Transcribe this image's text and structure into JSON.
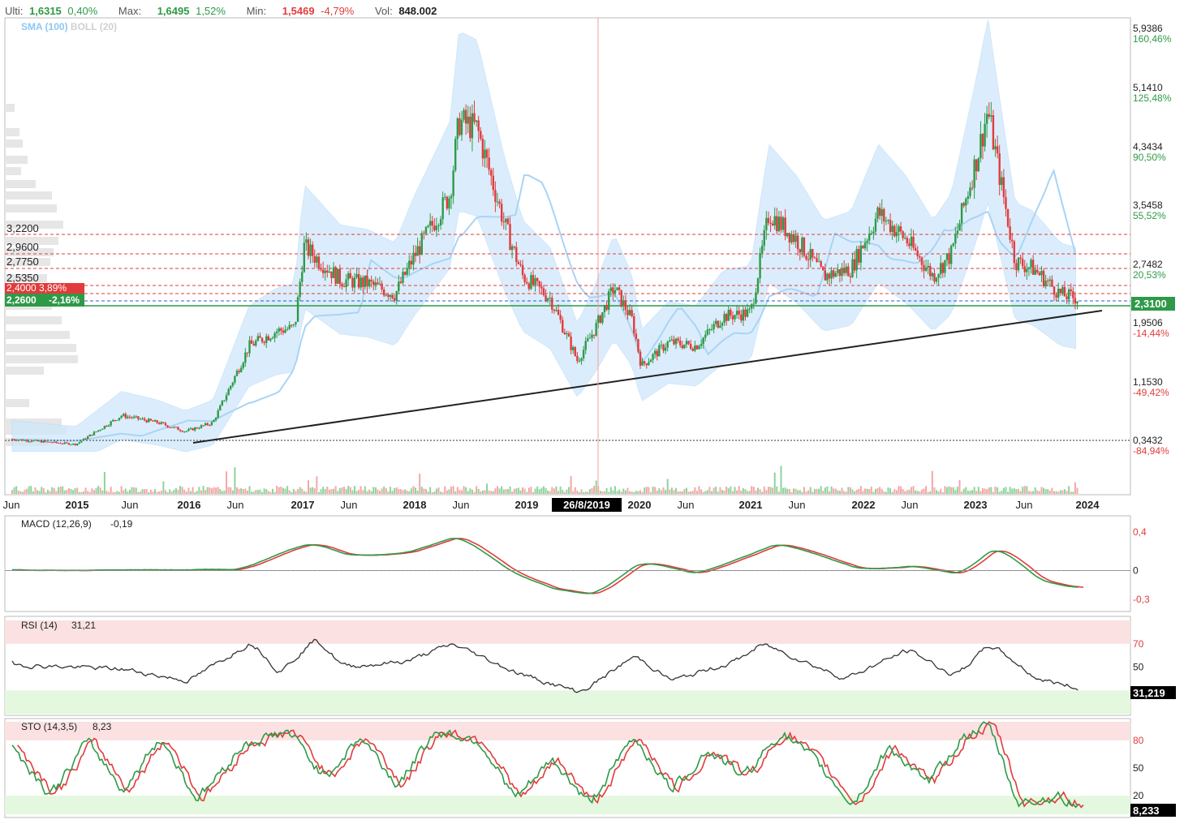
{
  "header": {
    "last_label": "Ulti:",
    "last_value": "1,6315",
    "last_pct": "0,40%",
    "max_label": "Max:",
    "max_value": "1,6495",
    "max_pct": "1,52%",
    "min_label": "Min:",
    "min_value": "1,5469",
    "min_pct": "-4,79%",
    "vol_label": "Vol:",
    "vol_value": "848.002"
  },
  "indicators_label": {
    "sma": "SMA (100)",
    "boll": "BOLL (20)"
  },
  "colors": {
    "up": "#2e9a48",
    "down": "#e23b3b",
    "band": "#cfe8fb",
    "sma": "#a9d4f5",
    "overbought": "#fbe1e1",
    "oversold": "#e3f8de",
    "price_tag": "#2e9a48"
  },
  "chart_data": [
    {
      "type": "line",
      "name": "price",
      "x": [
        "2014-06",
        "2014-09",
        "2015-01",
        "2015-06",
        "2015-10",
        "2016-01",
        "2016-04",
        "2016-08",
        "2016-11",
        "2017-01",
        "2017-02",
        "2017-06",
        "2017-09",
        "2017-12",
        "2018-02",
        "2018-06",
        "2018-07",
        "2018-09",
        "2018-12",
        "2019-02",
        "2019-05",
        "2019-08",
        "2019-10",
        "2019-12",
        "2020-02",
        "2020-03",
        "2020-06",
        "2020-09",
        "2020-12",
        "2021-03",
        "2021-05",
        "2021-08",
        "2021-11",
        "2022-02",
        "2022-05",
        "2022-08",
        "2022-11",
        "2023-01",
        "2023-04",
        "2023-05",
        "2023-08",
        "2023-10",
        "2024-01",
        "2024-03"
      ],
      "values": [
        0.37,
        0.34,
        0.3,
        0.7,
        0.6,
        0.48,
        0.6,
        1.65,
        1.85,
        1.9,
        3.0,
        2.55,
        2.5,
        2.35,
        2.85,
        3.7,
        4.7,
        4.6,
        3.3,
        2.6,
        2.3,
        1.45,
        1.9,
        2.45,
        2.0,
        1.38,
        1.7,
        1.65,
        2.05,
        2.1,
        3.45,
        3.1,
        2.6,
        2.7,
        3.45,
        3.1,
        2.6,
        2.9,
        4.3,
        4.85,
        2.8,
        2.7,
        2.35,
        2.29
      ],
      "price_ticks": [
        "5,9386",
        "5,1410",
        "4,3434",
        "3,5458",
        "2,7482",
        "1,9506",
        "1,1530",
        "0,3432"
      ],
      "pct_ticks": [
        "160,46%",
        "125,48%",
        "90,50%",
        "55,52%",
        "20,53%",
        "-14,44%",
        "-49,42%",
        "-84,94%"
      ],
      "date_labels": [
        "Jun",
        "2015",
        "Jun",
        "2016",
        "Jun",
        "2017",
        "Jun",
        "2018",
        "Jun",
        "2019",
        "2020",
        "Jun",
        "2021",
        "Jun",
        "2022",
        "Jun",
        "2023",
        "Jun",
        "2024"
      ],
      "crosshair_date": "26/8/2019",
      "levels": [
        "3,2200",
        "2,9600",
        "2,7750",
        "2,5350",
        "2,4000  3,89%"
      ],
      "current_level": {
        "label": "2,2600",
        "pct": "-2,16%"
      },
      "current_price": "2,3100",
      "ylim": [
        0.15,
        6.15
      ]
    },
    {
      "type": "line",
      "name": "MACD",
      "title": "MACD (12,26,9)",
      "value": "-0,19",
      "ticks": [
        "0,4",
        "0",
        "-0,3"
      ],
      "ylim": [
        -0.35,
        0.45
      ],
      "x": [
        "2014-06",
        "2016-06",
        "2016-12",
        "2017-02",
        "2017-06",
        "2017-12",
        "2018-06",
        "2018-12",
        "2019-05",
        "2019-09",
        "2020-02",
        "2020-08",
        "2021-05",
        "2022-02",
        "2022-08",
        "2023-01",
        "2023-05",
        "2023-10",
        "2024-03"
      ],
      "values": [
        0.0,
        0.01,
        0.25,
        0.3,
        0.14,
        0.18,
        0.37,
        -0.05,
        -0.22,
        -0.25,
        0.12,
        -0.05,
        0.3,
        0.0,
        0.05,
        -0.05,
        0.28,
        -0.15,
        -0.19
      ]
    },
    {
      "type": "line",
      "name": "RSI",
      "title": "RSI (14)",
      "value": "31,21",
      "tag": "31,219",
      "ticks": [
        "70",
        "50"
      ],
      "ylim": [
        10,
        90
      ],
      "x": [
        "2014-06",
        "2015-06",
        "2016-01",
        "2016-08",
        "2016-11",
        "2017-03",
        "2017-06",
        "2018-01",
        "2018-06",
        "2019-01",
        "2019-08",
        "2020-02",
        "2020-06",
        "2021-01",
        "2021-04",
        "2022-01",
        "2022-08",
        "2023-01",
        "2023-05",
        "2023-10",
        "2024-03"
      ],
      "values": [
        52,
        48,
        38,
        72,
        45,
        75,
        50,
        55,
        70,
        45,
        28,
        60,
        38,
        55,
        70,
        40,
        65,
        42,
        70,
        40,
        31.2
      ]
    },
    {
      "type": "line",
      "name": "STO",
      "title": "STO (14,3,5)",
      "value": "8,23",
      "tag": "8,233",
      "ticks": [
        "80",
        "50",
        "20"
      ],
      "ylim": [
        0,
        100
      ],
      "x": [
        "2014-06",
        "2014-10",
        "2015-02",
        "2015-06",
        "2015-10",
        "2016-02",
        "2016-07",
        "2016-12",
        "2017-04",
        "2017-08",
        "2017-12",
        "2018-04",
        "2018-09",
        "2019-01",
        "2019-05",
        "2019-09",
        "2020-02",
        "2020-06",
        "2020-10",
        "2021-02",
        "2021-06",
        "2021-10",
        "2022-02",
        "2022-06",
        "2022-10",
        "2023-02",
        "2023-05",
        "2023-08",
        "2023-12",
        "2024-03"
      ],
      "values": [
        70,
        20,
        80,
        25,
        85,
        15,
        75,
        90,
        40,
        85,
        30,
        90,
        80,
        15,
        60,
        10,
        85,
        25,
        70,
        40,
        90,
        55,
        10,
        75,
        30,
        85,
        95,
        10,
        20,
        8.2
      ]
    }
  ]
}
